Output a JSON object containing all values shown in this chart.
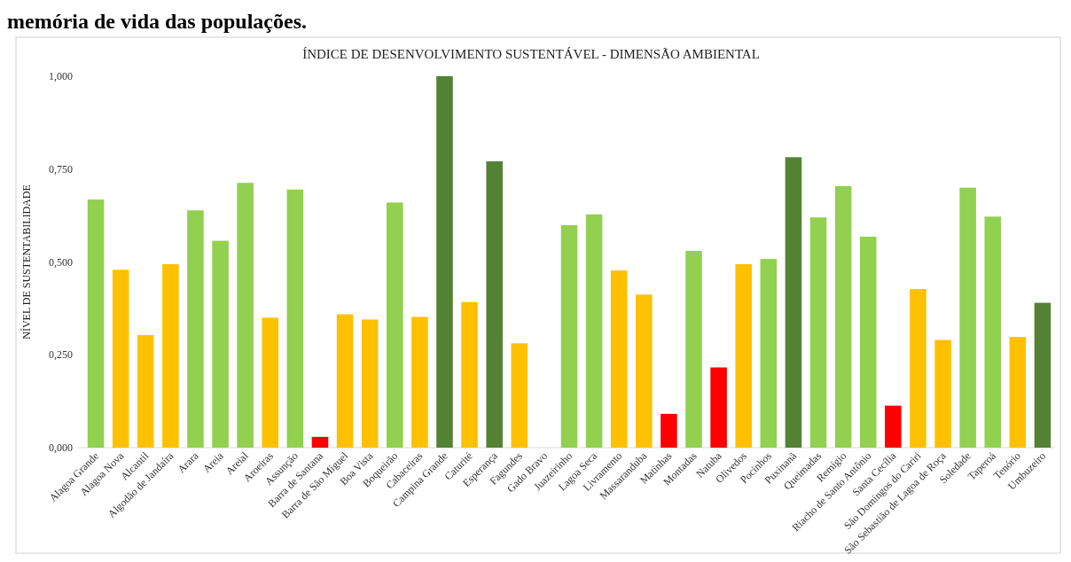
{
  "chart_data": {
    "type": "bar",
    "title": "ÍNDICE DE DESENVOLVIMENTO SUSTENTÁVEL - DIMENSÃO AMBIENTAL",
    "ylabel": "NÍVEL DE SUSTENTABILIDADE",
    "annotations": [
      "memória de vida das populações."
    ],
    "categories": [
      "Alagoa Grande",
      "Alagoa Nova",
      "Alcantil",
      "Algodão de Jandaíra",
      "Arara",
      "Areia",
      "Areial",
      "Aroeiras",
      "Assunção",
      "Barra de Santana",
      "Barra de São Miguel",
      "Boa Vista",
      "Boqueirão",
      "Cabaceiras",
      "Campina Grande",
      "Caturité",
      "Esperança",
      "Fagundes",
      "Gado Bravo",
      "Juazeirinho",
      "Lagoa Seca",
      "Livramento",
      "Massaranduba",
      "Matinhas",
      "Montadas",
      "Natuba",
      "Olivedos",
      "Pocinhos",
      "Puxinanã",
      "Queimadas",
      "Remígio",
      "Riacho de Santo Antônio",
      "Santa Cecília",
      "São Domingos do Cariri",
      "São Sebastião de Lagoa de Roça",
      "Soledade",
      "Taperoá",
      "Tenório",
      "Umbuzeiro"
    ],
    "values": [
      0.668,
      0.479,
      0.303,
      0.494,
      0.639,
      0.557,
      0.713,
      0.35,
      0.695,
      0.029,
      0.359,
      0.345,
      0.66,
      0.352,
      1.0,
      0.392,
      0.771,
      0.281,
      0,
      0.599,
      0.628,
      0.477,
      0.412,
      0.091,
      0.53,
      0.216,
      0.494,
      0.508,
      0.782,
      0.62,
      0.704,
      0.568,
      0.113,
      0.427,
      0.29,
      0.7,
      0.622,
      0.298,
      0.39
    ],
    "colors": [
      "#92d050",
      "#ffc000",
      "#ffc000",
      "#ffc000",
      "#92d050",
      "#92d050",
      "#92d050",
      "#ffc000",
      "#92d050",
      "#ff0000",
      "#ffc000",
      "#ffc000",
      "#92d050",
      "#ffc000",
      "#548235",
      "#ffc000",
      "#548235",
      "#ffc000",
      "#ffc000",
      "#92d050",
      "#92d050",
      "#ffc000",
      "#ffc000",
      "#ff0000",
      "#92d050",
      "#ff0000",
      "#ffc000",
      "#92d050",
      "#548235",
      "#92d050",
      "#92d050",
      "#92d050",
      "#ff0000",
      "#ffc000",
      "#ffc000",
      "#92d050",
      "#92d050",
      "#ffc000",
      "#548235"
    ],
    "ylim": [
      0,
      1
    ],
    "yticks": [
      {
        "value": 0,
        "label": "0,000"
      },
      {
        "value": 0.25,
        "label": "0,250"
      },
      {
        "value": 0.5,
        "label": "0,500"
      },
      {
        "value": 0.75,
        "label": "0,750"
      },
      {
        "value": 1,
        "label": "1,000"
      }
    ],
    "grid": false
  }
}
